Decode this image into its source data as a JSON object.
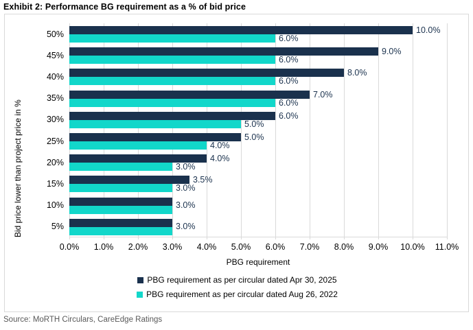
{
  "title": "Exhibit 2: Performance BG requirement as a % of bid price",
  "source": "Source: MoRTH Circulars, CareEdge Ratings",
  "colors": {
    "navy": "#1a314d",
    "teal": "#12d7ca",
    "grid": "#d9d9d9",
    "border": "#d9d9d9",
    "data_label": "#1a314d",
    "source_text": "#595959"
  },
  "chart_data": {
    "type": "bar",
    "orientation": "horizontal",
    "xlabel": "PBG requirement",
    "ylabel": "Bid price lower than project price in %",
    "categories": [
      "50%",
      "45%",
      "40%",
      "35%",
      "30%",
      "25%",
      "20%",
      "15%",
      "10%",
      "5%"
    ],
    "series": [
      {
        "name": "PBG requirement as per circular dated Apr 30, 2025",
        "color": "#1a314d",
        "values": [
          10.0,
          9.0,
          8.0,
          7.0,
          6.0,
          5.0,
          4.0,
          3.5,
          3.0,
          3.0
        ],
        "labels": [
          "10.0%",
          "9.0%",
          "8.0%",
          "7.0%",
          "6.0%",
          "5.0%",
          "4.0%",
          "3.5%",
          "3.0%",
          "3.0%"
        ]
      },
      {
        "name": "PBG requirement as per circular dated Aug 26, 2022",
        "color": "#12d7ca",
        "values": [
          6.0,
          6.0,
          6.0,
          6.0,
          5.0,
          4.0,
          3.0,
          3.0,
          3.0,
          3.0
        ],
        "labels": [
          "6.0%",
          "6.0%",
          "6.0%",
          "6.0%",
          "5.0%",
          "4.0%",
          "3.0%",
          "3.0%",
          "3.0%",
          "3.0%"
        ]
      }
    ],
    "x_ticks": [
      "0.0%",
      "1.0%",
      "2.0%",
      "3.0%",
      "4.0%",
      "5.0%",
      "6.0%",
      "7.0%",
      "8.0%",
      "9.0%",
      "10.0%",
      "11.0%"
    ],
    "xlim": [
      0,
      11
    ],
    "grid": "vertical",
    "legend_position": "bottom"
  }
}
